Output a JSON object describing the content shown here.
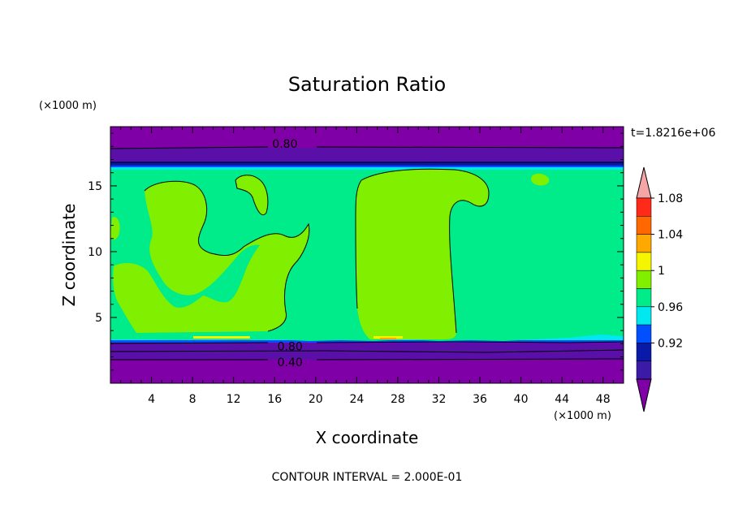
{
  "chart_data": {
    "type": "heatmap",
    "title": "Saturation Ratio",
    "xlabel": "X coordinate",
    "ylabel": "Z coordinate",
    "x_unit": "(×1000 m)",
    "y_unit": "(×1000 m)",
    "time_label": "t=1.8216e+06",
    "footer": "CONTOUR INTERVAL = 2.000E-01",
    "xlim": [
      0,
      50
    ],
    "ylim": [
      0,
      19.5
    ],
    "x_ticks": [
      4,
      8,
      12,
      16,
      20,
      24,
      28,
      32,
      36,
      40,
      44,
      48
    ],
    "y_ticks": [
      5,
      10,
      15
    ],
    "contour_labels": [
      {
        "text": "0.80",
        "x": 17,
        "y": 18.2
      },
      {
        "text": "0.80",
        "x": 17.5,
        "y": 2.8
      },
      {
        "text": "0.40",
        "x": 17.5,
        "y": 1.6
      }
    ],
    "colorbar": {
      "levels": [
        "0.92",
        "0.96",
        "1",
        "1.04",
        "1.08"
      ],
      "colors": [
        "#7f00a6",
        "#3b1aa8",
        "#0a1aa8",
        "#0050ff",
        "#00e8f0",
        "#00eb8a",
        "#80f000",
        "#f5f500",
        "#ffa800",
        "#ff6800",
        "#ff2a1a",
        "#f4a6a6"
      ]
    }
  }
}
